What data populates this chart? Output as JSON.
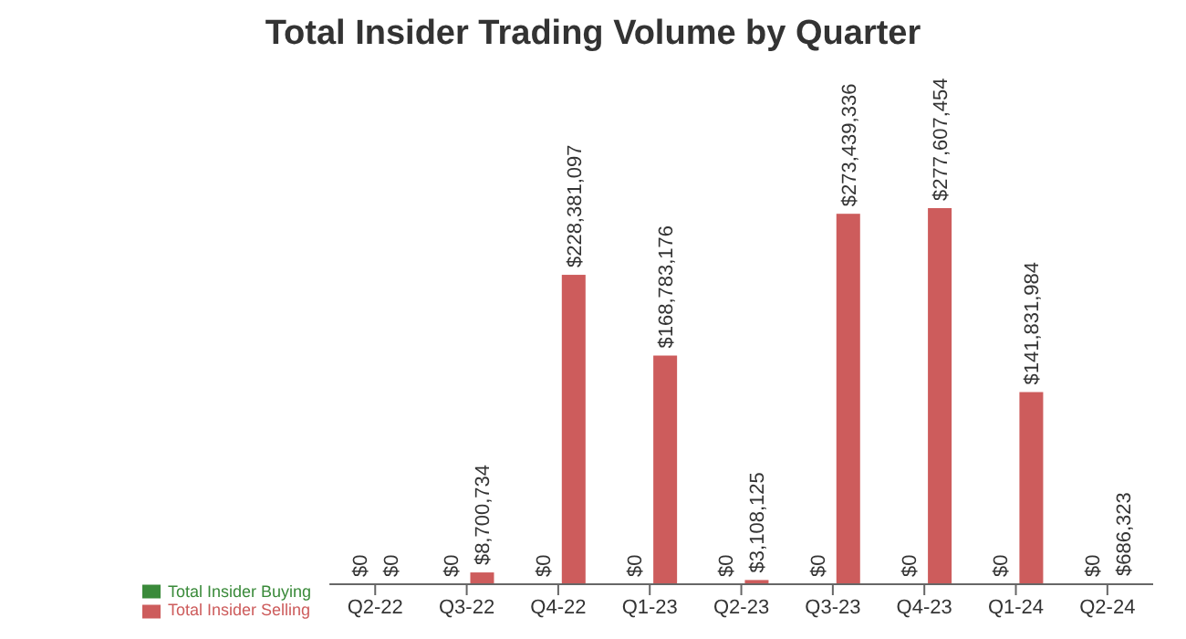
{
  "chart_data": {
    "type": "bar",
    "title": "Total Insider Trading Volume by Quarter",
    "categories": [
      "Q2-22",
      "Q3-22",
      "Q4-22",
      "Q1-23",
      "Q2-23",
      "Q3-23",
      "Q4-23",
      "Q1-24",
      "Q2-24"
    ],
    "series": [
      {
        "name": "Total Insider Buying",
        "color": "#3a8a3a",
        "values": [
          0,
          0,
          0,
          0,
          0,
          0,
          0,
          0,
          0
        ],
        "value_labels": [
          "$0",
          "$0",
          "$0",
          "$0",
          "$0",
          "$0",
          "$0",
          "$0",
          "$0"
        ]
      },
      {
        "name": "Total Insider Selling",
        "color": "#cd5c5c",
        "values": [
          0,
          8700734,
          228381097,
          168783176,
          3108125,
          273439336,
          277607454,
          141831984,
          686323
        ],
        "value_labels": [
          "$0",
          "$8,700,734",
          "$228,381,097",
          "$168,783,176",
          "$3,108,125",
          "$273,439,336",
          "$277,607,454",
          "$141,831,984",
          "$686,323"
        ]
      }
    ],
    "legend": "bottom left"
  }
}
